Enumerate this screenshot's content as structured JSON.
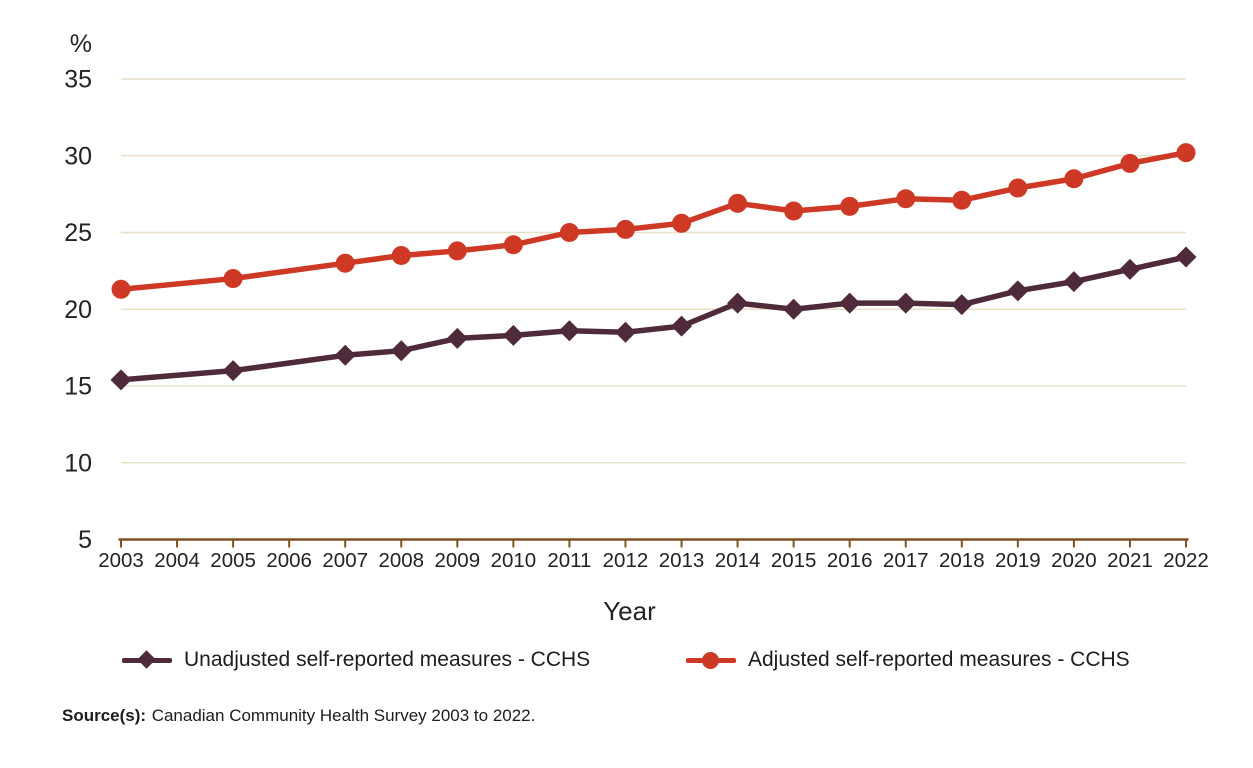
{
  "colors": {
    "background": "#ffffff",
    "gridline": "#e9e0c8",
    "axis": "#7d5226",
    "text": "#252220",
    "unadjusted_series": "#4f2a3b",
    "adjusted_series": "#ce3926"
  },
  "legend": {
    "items": [
      {
        "id": "unadjusted",
        "label": "Unadjusted self-reported measures - CCHS",
        "color": "#4f2a3b",
        "marker": "diamond"
      },
      {
        "id": "adjusted",
        "label": "Adjusted self-reported measures - CCHS",
        "color": "#ce3926",
        "marker": "circle"
      }
    ]
  },
  "source": {
    "label": "Source(s):",
    "text": "Canadian Community Health Survey 2003 to 2022."
  },
  "chart_data": {
    "type": "line",
    "title": "",
    "xlabel": "Year",
    "ylabel": "%",
    "ylim": [
      5,
      35
    ],
    "y_ticks": [
      5,
      10,
      15,
      20,
      25,
      30,
      35
    ],
    "x_ticks": [
      2003,
      2004,
      2005,
      2006,
      2007,
      2008,
      2009,
      2010,
      2011,
      2012,
      2013,
      2014,
      2015,
      2016,
      2017,
      2018,
      2019,
      2020,
      2021,
      2022
    ],
    "x": [
      2003,
      2005,
      2007,
      2008,
      2009,
      2010,
      2011,
      2012,
      2013,
      2014,
      2015,
      2016,
      2017,
      2018,
      2019,
      2020,
      2021,
      2022
    ],
    "series": [
      {
        "id": "unadjusted",
        "name": "Unadjusted self-reported measures - CCHS",
        "color": "#4f2a3b",
        "marker": "diamond",
        "values": [
          15.4,
          16.0,
          17.0,
          17.3,
          18.1,
          18.3,
          18.6,
          18.5,
          18.9,
          20.4,
          20.0,
          20.4,
          20.4,
          20.3,
          21.2,
          21.8,
          22.6,
          23.4
        ]
      },
      {
        "id": "adjusted",
        "name": "Adjusted self-reported measures - CCHS",
        "color": "#ce3926",
        "marker": "circle",
        "values": [
          21.3,
          22.0,
          23.0,
          23.5,
          23.8,
          24.2,
          25.0,
          25.2,
          25.6,
          26.9,
          26.4,
          26.7,
          27.2,
          27.1,
          27.9,
          28.5,
          29.5,
          30.2
        ]
      }
    ],
    "grid": true,
    "legend_position": "bottom"
  }
}
